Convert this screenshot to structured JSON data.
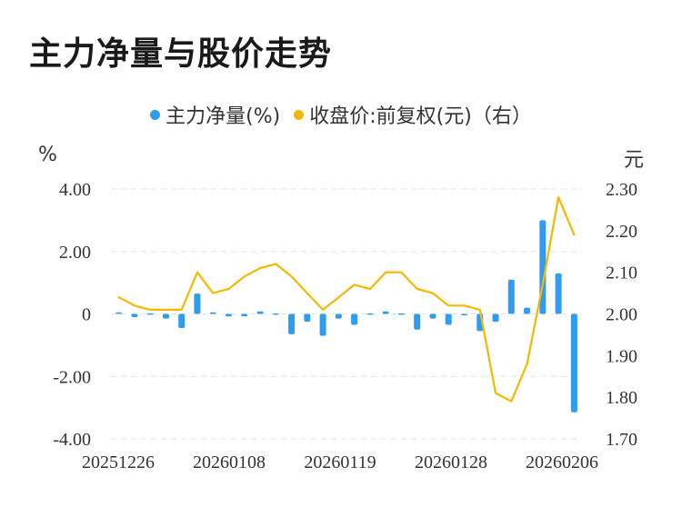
{
  "title": "主力净量与股价走势",
  "legend": {
    "series1": "主力净量(%)",
    "series2": "收盘价:前复权(元)（右）"
  },
  "units": {
    "left": "%",
    "right": "元"
  },
  "colors": {
    "bar": "#2E9CF0",
    "line": "#F5B800",
    "grid": "#E3E3E3"
  },
  "chart_data": {
    "type": "bar+line",
    "x_ticks": [
      "20251226",
      "20260108",
      "20260119",
      "20260128",
      "20260206"
    ],
    "y_left": {
      "ticks": [
        "4.00",
        "2.00",
        "0",
        "-2.00",
        "-4.00"
      ],
      "ylim": [
        -4,
        4
      ]
    },
    "y_right": {
      "ticks": [
        "2.30",
        "2.20",
        "2.10",
        "2.00",
        "1.90",
        "1.80",
        "1.70"
      ],
      "ylim": [
        1.7,
        2.3
      ]
    },
    "series": [
      {
        "name": "主力净量(%)",
        "type": "bar",
        "values": [
          0.05,
          -0.1,
          0.02,
          -0.15,
          -0.45,
          0.65,
          0.05,
          -0.08,
          -0.08,
          0.08,
          0.02,
          -0.65,
          -0.25,
          -0.7,
          -0.15,
          -0.35,
          0.02,
          0.08,
          0.02,
          -0.5,
          -0.15,
          -0.35,
          0.0,
          -0.55,
          -0.25,
          1.1,
          0.2,
          3.0,
          1.3,
          -3.15
        ]
      },
      {
        "name": "收盘价:前复权(元)（右）",
        "type": "line",
        "values": [
          2.04,
          2.02,
          2.01,
          2.01,
          2.01,
          2.1,
          2.05,
          2.06,
          2.09,
          2.11,
          2.12,
          2.09,
          2.05,
          2.01,
          2.04,
          2.07,
          2.06,
          2.1,
          2.1,
          2.06,
          2.05,
          2.02,
          2.02,
          2.01,
          1.81,
          1.79,
          1.88,
          2.07,
          2.28,
          2.19
        ]
      }
    ]
  }
}
